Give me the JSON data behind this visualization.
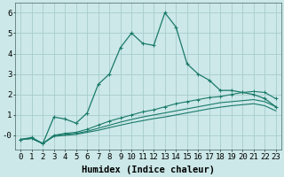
{
  "xlabel": "Humidex (Indice chaleur)",
  "x": [
    0,
    1,
    2,
    3,
    4,
    5,
    6,
    7,
    8,
    9,
    10,
    11,
    12,
    13,
    14,
    15,
    16,
    17,
    18,
    19,
    20,
    21,
    22,
    23
  ],
  "line1": [
    -0.2,
    -0.1,
    -0.4,
    0.9,
    0.8,
    0.6,
    1.1,
    2.5,
    3.0,
    4.3,
    5.0,
    4.5,
    4.4,
    6.0,
    5.3,
    3.5,
    3.0,
    2.7,
    2.2,
    2.2,
    2.1,
    2.0,
    1.8,
    1.4
  ],
  "line2": [
    -0.2,
    -0.15,
    -0.4,
    0.0,
    0.1,
    0.15,
    0.3,
    0.5,
    0.7,
    0.85,
    1.0,
    1.15,
    1.25,
    1.4,
    1.55,
    1.65,
    1.75,
    1.85,
    1.9,
    2.0,
    2.1,
    2.15,
    2.1,
    1.8
  ],
  "line3": [
    -0.2,
    -0.15,
    -0.4,
    0.0,
    0.05,
    0.1,
    0.2,
    0.35,
    0.5,
    0.65,
    0.78,
    0.9,
    1.0,
    1.1,
    1.2,
    1.3,
    1.4,
    1.5,
    1.6,
    1.65,
    1.7,
    1.75,
    1.65,
    1.4
  ],
  "line4": [
    -0.2,
    -0.15,
    -0.4,
    -0.05,
    0.0,
    0.05,
    0.15,
    0.25,
    0.38,
    0.5,
    0.62,
    0.72,
    0.82,
    0.9,
    1.0,
    1.1,
    1.2,
    1.3,
    1.38,
    1.45,
    1.5,
    1.55,
    1.45,
    1.2
  ],
  "line_color": "#1a7a6a",
  "bg_color": "#cce8e8",
  "grid_color": "#a8cccc",
  "ylim": [
    -0.7,
    6.5
  ],
  "yticks": [
    0,
    1,
    2,
    3,
    4,
    5,
    6
  ],
  "ytick_labels": [
    "-0",
    "1",
    "2",
    "3",
    "4",
    "5",
    "6"
  ],
  "xtick_labels": [
    "0",
    "1",
    "2",
    "3",
    "4",
    "5",
    "6",
    "7",
    "8",
    "9",
    "10",
    "11",
    "12",
    "13",
    "14",
    "15",
    "16",
    "17",
    "18",
    "19",
    "20",
    "21",
    "22",
    "23"
  ],
  "xlabel_fontsize": 7.5,
  "tick_fontsize": 6.5
}
